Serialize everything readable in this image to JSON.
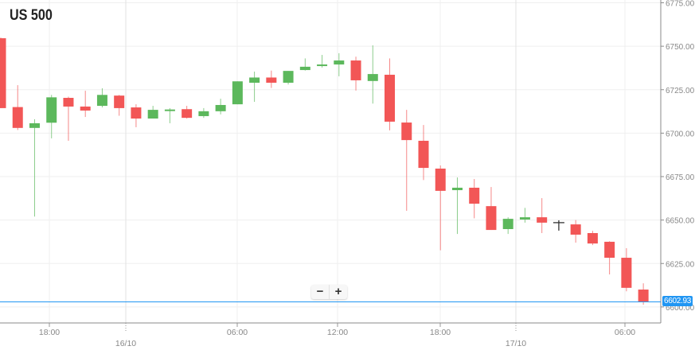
{
  "title": "US 500",
  "zoom_controls": {
    "minus": "−",
    "plus": "+"
  },
  "last_price_label": "6602.93",
  "colors": {
    "up": "#5cb85c",
    "down": "#f25656",
    "last_price": "#2196f3",
    "grid": "#efefef",
    "axis": "#8a8a8a"
  },
  "chart_data": {
    "type": "candlestick",
    "title": "US 500",
    "ylim": [
      6600,
      6775
    ],
    "y_ticks": [
      "6775.00",
      "6750.00",
      "6725.00",
      "6700.00",
      "6675.00",
      "6650.00",
      "6625.00",
      "6600.00"
    ],
    "x_tick_labels": [
      "18:00",
      "16/10",
      "06:00",
      "12:00",
      "18:00",
      "17/10",
      "06:00"
    ],
    "grid": true,
    "last_price": 6602.93,
    "candles": [
      {
        "o": 6754.6,
        "h": 6755,
        "l": 6714.4,
        "c": 6714.4
      },
      {
        "o": 6715,
        "h": 6727.6,
        "l": 6701.8,
        "c": 6703
      },
      {
        "o": 6703,
        "h": 6708,
        "l": 6652,
        "c": 6705.7
      },
      {
        "o": 6706,
        "h": 6722,
        "l": 6697,
        "c": 6720.6
      },
      {
        "o": 6720.3,
        "h": 6721,
        "l": 6695.6,
        "c": 6715.3
      },
      {
        "o": 6715.3,
        "h": 6724.4,
        "l": 6709.3,
        "c": 6713
      },
      {
        "o": 6715.7,
        "h": 6725.8,
        "l": 6714.8,
        "c": 6722
      },
      {
        "o": 6721.6,
        "h": 6722,
        "l": 6710,
        "c": 6714.4
      },
      {
        "o": 6714.8,
        "h": 6716.6,
        "l": 6703.4,
        "c": 6708.4
      },
      {
        "o": 6708.4,
        "h": 6715.7,
        "l": 6708.4,
        "c": 6713.4
      },
      {
        "o": 6713.2,
        "h": 6714.4,
        "l": 6705.7,
        "c": 6713.6
      },
      {
        "o": 6713.8,
        "h": 6715.7,
        "l": 6708.4,
        "c": 6708.8
      },
      {
        "o": 6709.8,
        "h": 6714.4,
        "l": 6708.8,
        "c": 6712.6
      },
      {
        "o": 6712.6,
        "h": 6719.8,
        "l": 6710.8,
        "c": 6716.2
      },
      {
        "o": 6716.6,
        "h": 6729.8,
        "l": 6716.6,
        "c": 6729.8
      },
      {
        "o": 6729,
        "h": 6735.4,
        "l": 6718,
        "c": 6732
      },
      {
        "o": 6732,
        "h": 6736,
        "l": 6726,
        "c": 6729
      },
      {
        "o": 6729,
        "h": 6735.8,
        "l": 6728,
        "c": 6735.8
      },
      {
        "o": 6736.3,
        "h": 6743,
        "l": 6736,
        "c": 6738.2
      },
      {
        "o": 6738.6,
        "h": 6745,
        "l": 6737.7,
        "c": 6739.5
      },
      {
        "o": 6739.5,
        "h": 6746,
        "l": 6732.7,
        "c": 6741.8
      },
      {
        "o": 6741.8,
        "h": 6744,
        "l": 6724.5,
        "c": 6730.4
      },
      {
        "o": 6730,
        "h": 6750.5,
        "l": 6717,
        "c": 6734
      },
      {
        "o": 6733.6,
        "h": 6743,
        "l": 6701.6,
        "c": 6706.6
      },
      {
        "o": 6706.1,
        "h": 6713.4,
        "l": 6655.3,
        "c": 6696
      },
      {
        "o": 6695.6,
        "h": 6704.7,
        "l": 6673,
        "c": 6680
      },
      {
        "o": 6679.6,
        "h": 6681.4,
        "l": 6632.6,
        "c": 6666.8
      },
      {
        "o": 6667.2,
        "h": 6674.5,
        "l": 6642,
        "c": 6668.6
      },
      {
        "o": 6668.6,
        "h": 6673.6,
        "l": 6651,
        "c": 6659.4
      },
      {
        "o": 6658,
        "h": 6669,
        "l": 6644.3,
        "c": 6644.3
      },
      {
        "o": 6644.8,
        "h": 6651.6,
        "l": 6642,
        "c": 6650.7
      },
      {
        "o": 6650.3,
        "h": 6657,
        "l": 6648.5,
        "c": 6651.6
      },
      {
        "o": 6651.6,
        "h": 6662.6,
        "l": 6642.5,
        "c": 6648.5
      },
      null,
      {
        "o": 6647.5,
        "h": 6650,
        "l": 6637,
        "c": 6641.6
      },
      {
        "o": 6642.5,
        "h": 6643.8,
        "l": 6635.6,
        "c": 6636.5
      },
      {
        "o": 6637.5,
        "h": 6637.8,
        "l": 6618.7,
        "c": 6628.3
      },
      {
        "o": 6628.3,
        "h": 6633.8,
        "l": 6609,
        "c": 6611
      },
      {
        "o": 6610,
        "h": 6613.6,
        "l": 6601.3,
        "c": 6602.7
      }
    ]
  }
}
